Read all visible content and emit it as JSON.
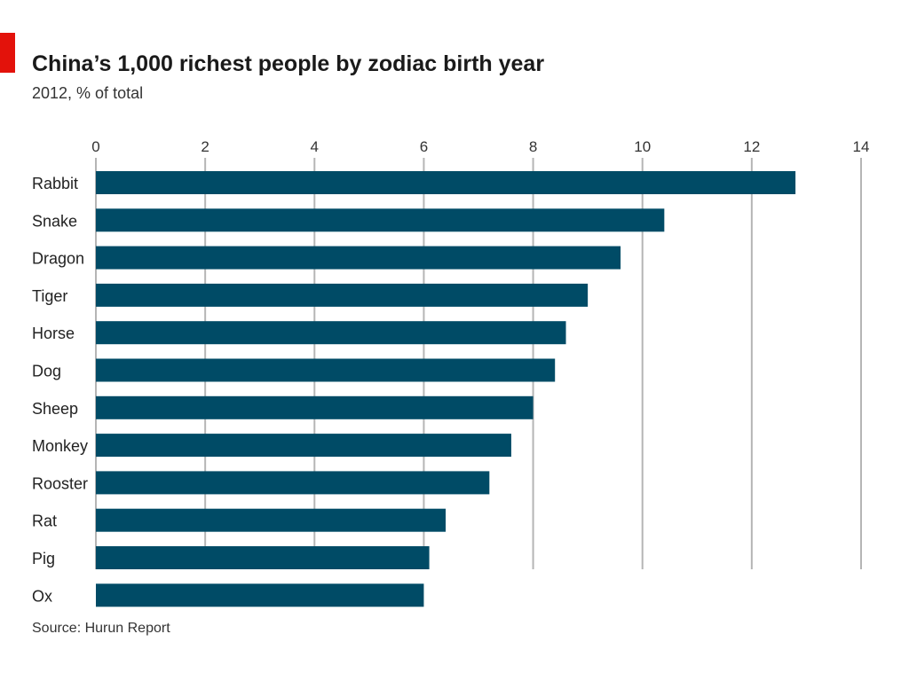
{
  "chart_data": {
    "type": "bar",
    "orientation": "horizontal",
    "title": "China’s 1,000 richest people by zodiac birth year",
    "subtitle": "2012, % of total",
    "source": "Source: Hurun Report",
    "categories": [
      "Rabbit",
      "Snake",
      "Dragon",
      "Tiger",
      "Horse",
      "Dog",
      "Sheep",
      "Monkey",
      "Rooster",
      "Rat",
      "Pig",
      "Ox"
    ],
    "values": [
      12.8,
      10.4,
      9.6,
      9.0,
      8.6,
      8.4,
      8.0,
      7.6,
      7.2,
      6.4,
      6.1,
      6.0
    ],
    "xlim": [
      0,
      14
    ],
    "xticks": [
      0,
      2,
      4,
      6,
      8,
      10,
      12,
      14
    ],
    "xaxis_position": "top",
    "grid": "vertical",
    "colors": {
      "bar": "#004b66",
      "grid": "#b5b5b5",
      "accent": "#e3120b"
    }
  }
}
